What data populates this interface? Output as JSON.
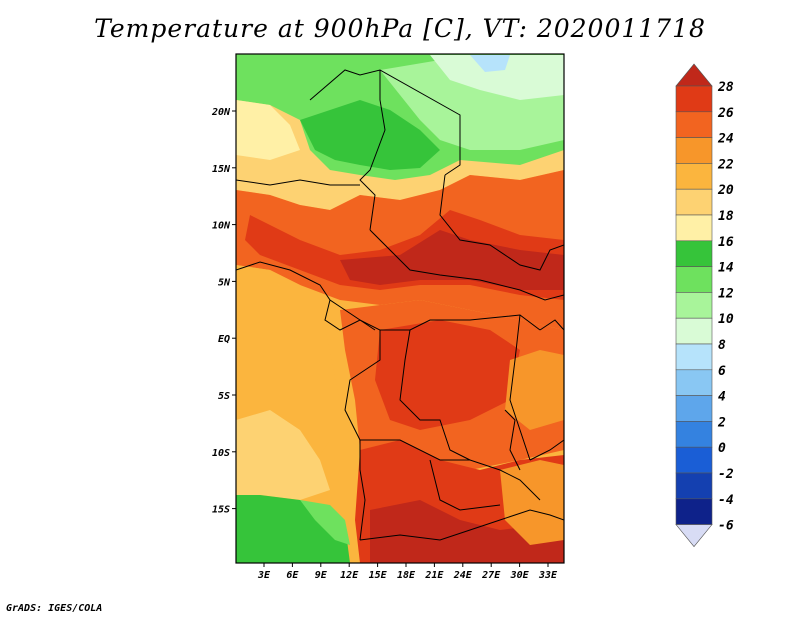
{
  "title": "Temperature at 900hPa [C], VT: 2020011718",
  "credit": "GrADS: IGES/COLA",
  "map": {
    "lon_ticks": [
      "3E",
      "6E",
      "9E",
      "12E",
      "15E",
      "18E",
      "21E",
      "24E",
      "27E",
      "30E",
      "33E"
    ],
    "lat_ticks": [
      "20N",
      "15N",
      "10N",
      "5N",
      "EQ",
      "5S",
      "10S",
      "15S"
    ]
  },
  "colorbar": {
    "levels": [
      "28",
      "26",
      "24",
      "22",
      "20",
      "18",
      "16",
      "14",
      "12",
      "10",
      "8",
      "6",
      "4",
      "2",
      "0",
      "-2",
      "-4",
      "-6"
    ],
    "colors": {
      "above_28": "#c0281a",
      "26_28": "#e03a16",
      "24_26": "#f26420",
      "22_24": "#f7962a",
      "20_22": "#fbb53e",
      "18_20": "#fdd272",
      "16_18": "#fff0a6",
      "14_16": "#36c43a",
      "12_14": "#6ee15e",
      "10_12": "#a8f49a",
      "8_10": "#d9fbd6",
      "6_8": "#b6e3fb",
      "4_6": "#89c7f3",
      "2_4": "#5ea6eb",
      "0_2": "#3482e0",
      "m2_0": "#1a5ed6",
      "m4_m2": "#1440b0",
      "m6_m4": "#0e228a",
      "below_m6": "#d8dcf5"
    }
  }
}
